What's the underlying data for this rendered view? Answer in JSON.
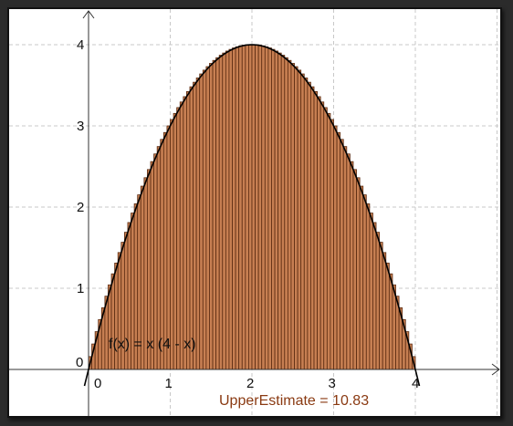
{
  "chart_data": {
    "type": "bar",
    "function_label": "f(x) = x (4 - x)",
    "estimate_label": "UpperEstimate = 10.83",
    "estimate_value": 10.83,
    "x_ticks": [
      "0",
      "1",
      "2",
      "3",
      "4"
    ],
    "y_ticks": [
      "1",
      "2",
      "3",
      "4"
    ],
    "xlim": [
      -0.05,
      4.9
    ],
    "ylim": [
      -0.5,
      4.4
    ],
    "grid": true,
    "interval": [
      0,
      4
    ],
    "rectangle_count": 100,
    "colors": {
      "bar_fill": "#c77f52",
      "bar_stroke": "#5a2a10",
      "curve": "#000000",
      "estimate_text": "#8a3a12",
      "grid": "#c8c8c8"
    }
  }
}
